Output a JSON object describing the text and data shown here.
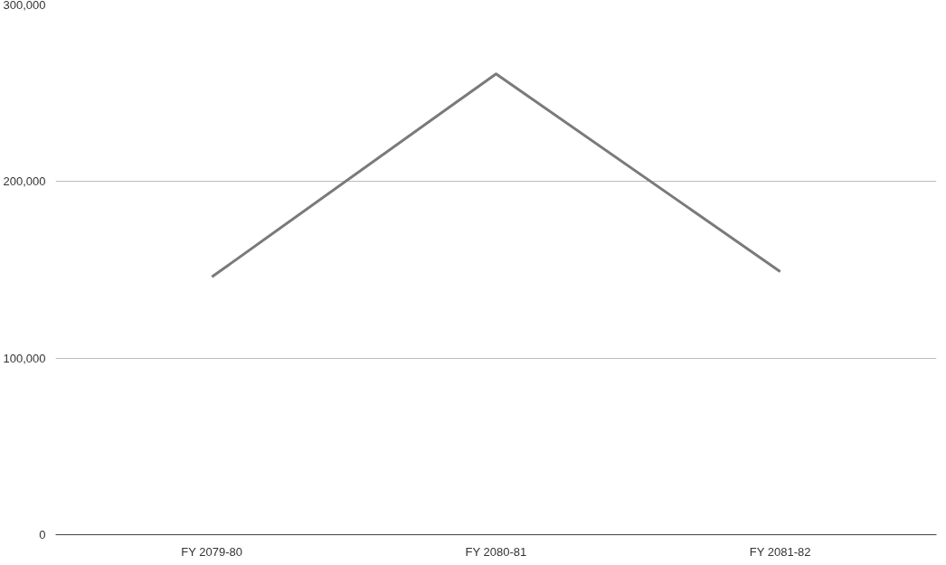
{
  "chart_data": {
    "type": "line",
    "categories": [
      "FY 2079-80",
      "FY 2080-81",
      "FY 2081-82"
    ],
    "series": [
      {
        "color": "#7a7a7a",
        "values": [
          146000,
          261000,
          149000
        ]
      }
    ],
    "ylim": [
      0,
      300000
    ],
    "yticks": [
      {
        "value": 0,
        "label": "0"
      },
      {
        "value": 100000,
        "label": "100,000"
      },
      {
        "value": 200000,
        "label": "200,000"
      },
      {
        "value": 300000,
        "label": "300,000"
      }
    ],
    "grid": "y",
    "marker": "none",
    "line_style": "solid"
  }
}
